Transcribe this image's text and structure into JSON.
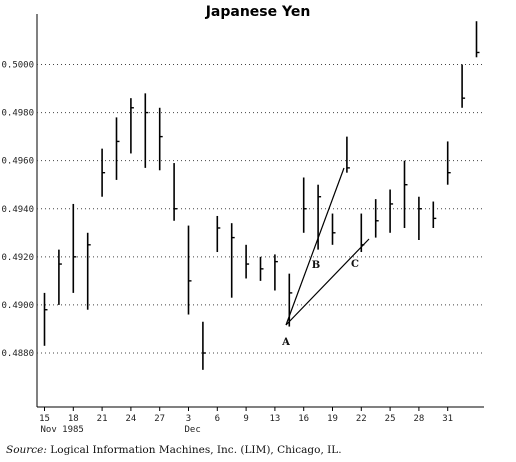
{
  "chart_data": {
    "type": "ohlc",
    "title": "Japanese Yen",
    "xlabel": "",
    "ylabel": "",
    "ylim": [
      0.4858,
      0.502
    ],
    "y_ticks": [
      "0.4880",
      "0.4900",
      "0.4920",
      "0.4940",
      "0.4960",
      "0.4980",
      "0.5000"
    ],
    "x_ticks": [
      "15",
      "18",
      "21",
      "24",
      "27",
      "3",
      "6",
      "9",
      "13",
      "16",
      "19",
      "22",
      "25",
      "28",
      "31"
    ],
    "x_sublabels": [
      "Nov 1985",
      "Dec"
    ],
    "grid": "dotted horizontal",
    "bars": [
      {
        "h": 0.4905,
        "l": 0.4883,
        "c": 0.4898
      },
      {
        "h": 0.4923,
        "l": 0.49,
        "c": 0.4917
      },
      {
        "h": 0.4942,
        "l": 0.4905,
        "c": 0.492
      },
      {
        "h": 0.493,
        "l": 0.4898,
        "c": 0.4925
      },
      {
        "h": 0.4965,
        "l": 0.4945,
        "c": 0.4955
      },
      {
        "h": 0.4978,
        "l": 0.4952,
        "c": 0.4968
      },
      {
        "h": 0.4986,
        "l": 0.4963,
        "c": 0.4982
      },
      {
        "h": 0.4988,
        "l": 0.4957,
        "c": 0.498
      },
      {
        "h": 0.4982,
        "l": 0.4956,
        "c": 0.497
      },
      {
        "h": 0.4959,
        "l": 0.4935,
        "c": 0.494
      },
      {
        "h": 0.4933,
        "l": 0.4896,
        "c": 0.491
      },
      {
        "h": 0.4893,
        "l": 0.4873,
        "c": 0.488
      },
      {
        "h": 0.4937,
        "l": 0.4922,
        "c": 0.4932
      },
      {
        "h": 0.4934,
        "l": 0.4903,
        "c": 0.4928
      },
      {
        "h": 0.4925,
        "l": 0.4911,
        "c": 0.4917
      },
      {
        "h": 0.492,
        "l": 0.491,
        "c": 0.4915
      },
      {
        "h": 0.4921,
        "l": 0.4906,
        "c": 0.4918
      },
      {
        "h": 0.4913,
        "l": 0.4891,
        "c": 0.4905
      },
      {
        "h": 0.4953,
        "l": 0.493,
        "c": 0.494
      },
      {
        "h": 0.495,
        "l": 0.4923,
        "c": 0.4945
      },
      {
        "h": 0.4938,
        "l": 0.4925,
        "c": 0.493
      },
      {
        "h": 0.497,
        "l": 0.4955,
        "c": 0.4957
      },
      {
        "h": 0.4938,
        "l": 0.4922,
        "c": 0.4925
      },
      {
        "h": 0.4944,
        "l": 0.4928,
        "c": 0.4935
      },
      {
        "h": 0.4948,
        "l": 0.493,
        "c": 0.4942
      },
      {
        "h": 0.496,
        "l": 0.4932,
        "c": 0.495
      },
      {
        "h": 0.4945,
        "l": 0.4927,
        "c": 0.494
      },
      {
        "h": 0.4943,
        "l": 0.4932,
        "c": 0.4936
      },
      {
        "h": 0.4968,
        "l": 0.495,
        "c": 0.4955
      },
      {
        "h": 0.5,
        "l": 0.4982,
        "c": 0.4986
      },
      {
        "h": 0.5018,
        "l": 0.5003,
        "c": 0.5005
      }
    ],
    "trendlines": [
      {
        "label": "B",
        "from": "A"
      },
      {
        "label": "C",
        "from": "A"
      }
    ],
    "annotations": [
      "A",
      "B",
      "C"
    ]
  },
  "footer": {
    "source_label": "Source:",
    "source_text": "Logical Information Machines, Inc. (LIM), Chicago, IL."
  }
}
